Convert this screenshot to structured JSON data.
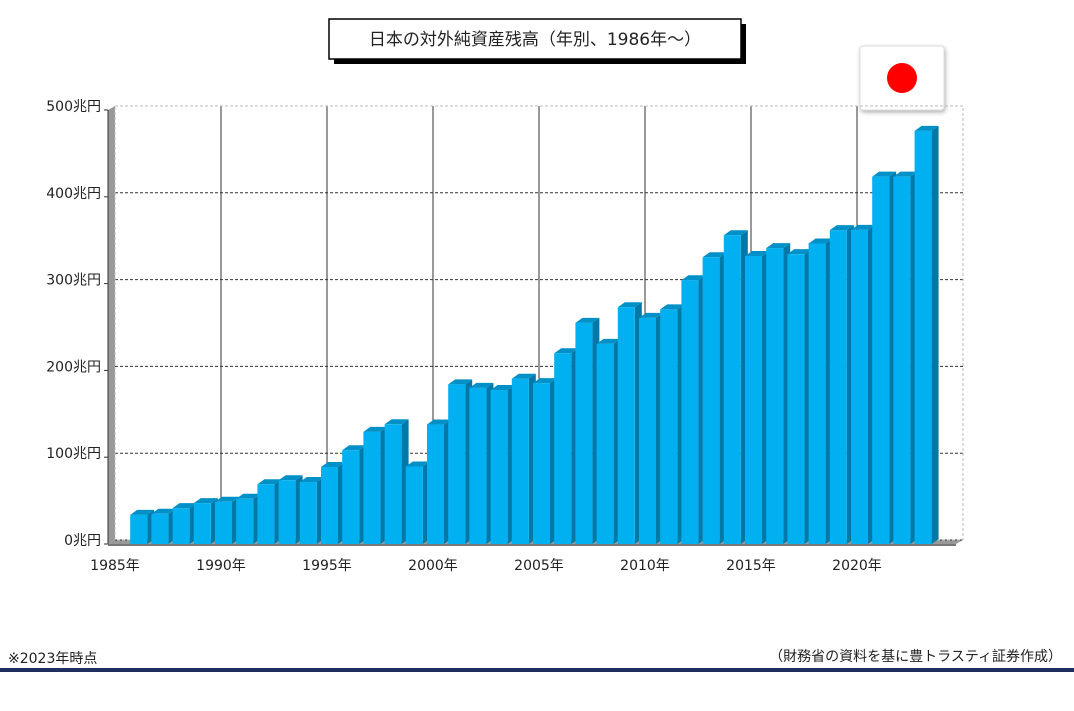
{
  "chart_data": {
    "type": "bar",
    "title": "日本の対外純資産残高（年別、1986年～）",
    "x": [
      1986,
      1987,
      1988,
      1989,
      1990,
      1991,
      1992,
      1993,
      1994,
      1995,
      1996,
      1997,
      1998,
      1999,
      2000,
      2001,
      2002,
      2003,
      2004,
      2005,
      2006,
      2007,
      2008,
      2009,
      2010,
      2011,
      2012,
      2013,
      2014,
      2015,
      2016,
      2017,
      2018,
      2019,
      2020,
      2021,
      2022,
      2023
    ],
    "values": [
      28.9,
      30.2,
      36.7,
      42.5,
      44.0,
      47.5,
      64.2,
      68.8,
      66.8,
      84.1,
      103.4,
      124.6,
      133.3,
      84.7,
      133.0,
      179.3,
      175.3,
      172.8,
      185.8,
      180.7,
      215.1,
      250.2,
      225.9,
      268.2,
      255.9,
      265.7,
      299.3,
      325.7,
      351.1,
      327.2,
      336.3,
      329.3,
      341.6,
      357.0,
      357.3,
      418.6,
      418.6,
      471.3
    ],
    "color": "#00b0f0",
    "xlim": [
      1985,
      2025
    ],
    "xticks": [
      {
        "value": 1985,
        "label": "1985年"
      },
      {
        "value": 1990,
        "label": "1990年"
      },
      {
        "value": 1995,
        "label": "1995年"
      },
      {
        "value": 2000,
        "label": "2000年"
      },
      {
        "value": 2005,
        "label": "2005年"
      },
      {
        "value": 2010,
        "label": "2010年"
      },
      {
        "value": 2015,
        "label": "2015年"
      },
      {
        "value": 2020,
        "label": "2020年"
      }
    ],
    "ylim": [
      0,
      500
    ],
    "yticks": [
      {
        "value": 0,
        "label": "0兆円"
      },
      {
        "value": 100,
        "label": "100兆円"
      },
      {
        "value": 200,
        "label": "200兆円"
      },
      {
        "value": 300,
        "label": "300兆円"
      },
      {
        "value": 400,
        "label": "400兆円"
      },
      {
        "value": 500,
        "label": "500兆円"
      }
    ],
    "grid": true,
    "note": "※2023年時点",
    "source": "（財務省の資料を基に豊トラスティ証券作成）"
  }
}
